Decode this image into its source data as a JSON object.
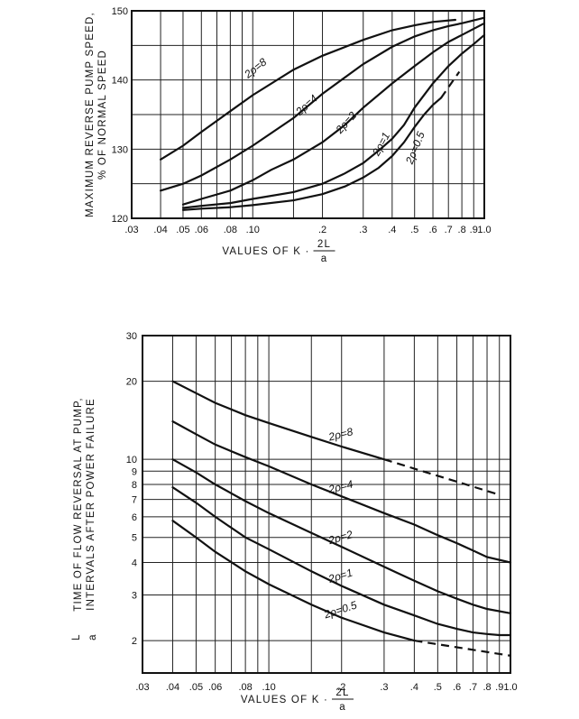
{
  "chart_data": [
    {
      "type": "line",
      "xscale": "log",
      "xlim": [
        0.03,
        1.0
      ],
      "ylim": [
        120,
        150
      ],
      "xticks": [
        ".03",
        ".04",
        ".05",
        ".06",
        ".08",
        ".10",
        ".2",
        ".3",
        ".4",
        ".5",
        ".6",
        ".7",
        ".8",
        ".9",
        "1.0"
      ],
      "yticks": [
        "120",
        "130",
        "140",
        "150"
      ],
      "ylabel_lines": [
        "MAXIMUM REVERSE PUMP SPEED,",
        "% OF NORMAL SPEED"
      ],
      "xlabel": "VALUES OF K · 2L/a",
      "xlabel_prefix": "VALUES OF K ·",
      "xlabel_num": "2L",
      "xlabel_den": "a",
      "series": [
        {
          "name": "2ρ=8",
          "x": [
            0.04,
            0.05,
            0.06,
            0.08,
            0.1,
            0.15,
            0.2,
            0.3,
            0.4,
            0.5,
            0.6,
            0.75
          ],
          "y": [
            128.5,
            130.5,
            132.5,
            135.5,
            137.8,
            141.5,
            143.5,
            145.8,
            147.2,
            147.9,
            148.4,
            148.7
          ]
        },
        {
          "name": "2ρ=4",
          "x": [
            0.04,
            0.05,
            0.06,
            0.08,
            0.1,
            0.15,
            0.2,
            0.3,
            0.4,
            0.5,
            0.6,
            0.7,
            0.8,
            1.0
          ],
          "y": [
            124.0,
            125.0,
            126.2,
            128.5,
            130.5,
            134.5,
            138.0,
            142.3,
            144.8,
            146.3,
            147.2,
            147.8,
            148.2,
            149.0
          ]
        },
        {
          "name": "2ρ=2",
          "x": [
            0.05,
            0.06,
            0.08,
            0.1,
            0.12,
            0.15,
            0.2,
            0.25,
            0.3,
            0.4,
            0.5,
            0.6,
            0.7,
            0.8,
            1.0
          ],
          "y": [
            122.0,
            122.8,
            124.0,
            125.5,
            127.0,
            128.5,
            131.0,
            133.5,
            136.0,
            139.5,
            142.0,
            144.0,
            145.5,
            146.5,
            148.2
          ]
        },
        {
          "name": "2ρ=1",
          "x": [
            0.05,
            0.06,
            0.08,
            0.1,
            0.15,
            0.2,
            0.25,
            0.3,
            0.35,
            0.4,
            0.45,
            0.5,
            0.6,
            0.7,
            0.8,
            0.9,
            1.0
          ],
          "y": [
            121.5,
            121.8,
            122.2,
            122.8,
            123.8,
            125.0,
            126.5,
            128.0,
            129.8,
            131.5,
            133.5,
            136.0,
            139.5,
            142.0,
            143.8,
            145.2,
            146.5
          ]
        },
        {
          "name": "2ρ=0.5",
          "x": [
            0.05,
            0.06,
            0.08,
            0.1,
            0.15,
            0.2,
            0.25,
            0.3,
            0.35,
            0.4,
            0.45,
            0.5,
            0.55,
            0.6,
            0.65
          ],
          "y": [
            121.2,
            121.4,
            121.6,
            121.9,
            122.6,
            123.5,
            124.6,
            125.9,
            127.3,
            129.0,
            131.0,
            133.2,
            135.0,
            136.4,
            137.4
          ],
          "dashed_x": [
            0.65,
            0.78
          ],
          "dashed_y": [
            137.4,
            141.2
          ]
        }
      ]
    },
    {
      "type": "line",
      "xscale": "log",
      "yscale": "log",
      "xlim": [
        0.03,
        1.0
      ],
      "ylim": [
        1.5,
        30
      ],
      "xticks": [
        ".03",
        ".04",
        ".05",
        ".06",
        ".08",
        ".10",
        ".2",
        ".3",
        ".4",
        ".5",
        ".6",
        ".7",
        ".8",
        ".9",
        "1.0"
      ],
      "yticks": [
        "2",
        "3",
        "4",
        "5",
        "6",
        "7",
        "8",
        "9",
        "10",
        "20",
        "30"
      ],
      "ylabel_lines": [
        "TIME OF FLOW REVERSAL AT PUMP,",
        "INTERVALS AFTER POWER FAILURE"
      ],
      "ylabel_frac_num": "L",
      "ylabel_frac_den": "a",
      "xlabel": "VALUES OF K · 2L/a",
      "xlabel_prefix": "VALUES OF K ·",
      "xlabel_num": "2L",
      "xlabel_den": "a",
      "series": [
        {
          "name": "2ρ=8",
          "x": [
            0.04,
            0.05,
            0.06,
            0.08,
            0.1,
            0.15,
            0.2,
            0.3
          ],
          "y": [
            20,
            18.0,
            16.5,
            14.8,
            13.8,
            12.2,
            11.2,
            10.0
          ],
          "dashed_x": [
            0.3,
            0.9
          ],
          "dashed_y": [
            10.0,
            7.3
          ]
        },
        {
          "name": "2ρ=4",
          "x": [
            0.04,
            0.05,
            0.06,
            0.08,
            0.1,
            0.15,
            0.2,
            0.3,
            0.4,
            0.5,
            0.6,
            0.7,
            0.8,
            1.0
          ],
          "y": [
            14,
            12.5,
            11.4,
            10.2,
            9.4,
            8.0,
            7.2,
            6.2,
            5.6,
            5.1,
            4.75,
            4.45,
            4.2,
            4.0
          ]
        },
        {
          "name": "2ρ=2",
          "x": [
            0.04,
            0.05,
            0.06,
            0.08,
            0.1,
            0.15,
            0.2,
            0.3,
            0.4,
            0.5,
            0.6,
            0.7,
            0.8,
            1.0
          ],
          "y": [
            10,
            8.9,
            8.0,
            6.9,
            6.2,
            5.2,
            4.6,
            3.85,
            3.4,
            3.1,
            2.9,
            2.75,
            2.65,
            2.55
          ]
        },
        {
          "name": "2ρ=1",
          "x": [
            0.04,
            0.05,
            0.06,
            0.08,
            0.1,
            0.15,
            0.2,
            0.3,
            0.4,
            0.5,
            0.6,
            0.7,
            0.8,
            0.9,
            1.0
          ],
          "y": [
            7.8,
            6.8,
            6.0,
            5.0,
            4.5,
            3.7,
            3.25,
            2.75,
            2.5,
            2.32,
            2.22,
            2.15,
            2.12,
            2.1,
            2.1
          ]
        },
        {
          "name": "2ρ=0.5",
          "x": [
            0.04,
            0.05,
            0.06,
            0.08,
            0.1,
            0.15,
            0.2,
            0.3,
            0.4
          ],
          "y": [
            5.8,
            5.0,
            4.4,
            3.7,
            3.3,
            2.75,
            2.45,
            2.15,
            2.0
          ],
          "dashed_x": [
            0.4,
            1.0
          ],
          "dashed_y": [
            2.0,
            1.75
          ]
        }
      ]
    }
  ]
}
